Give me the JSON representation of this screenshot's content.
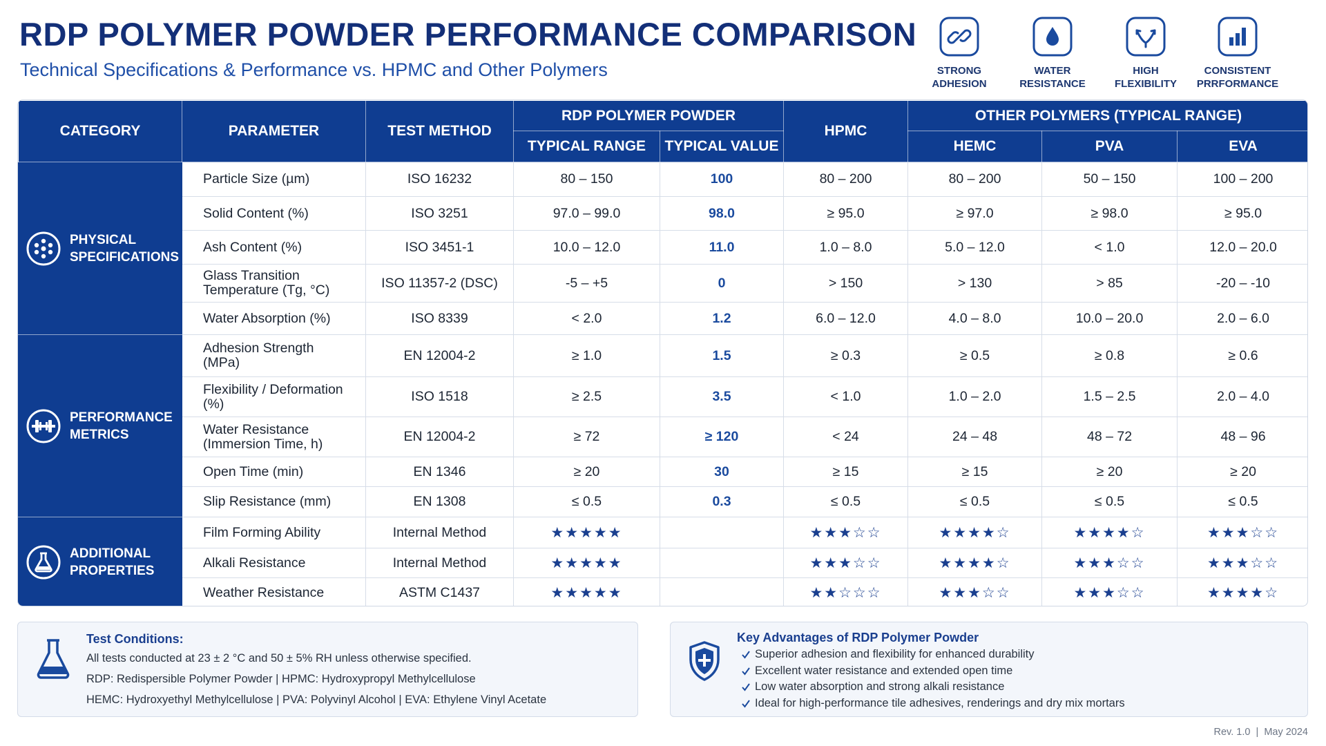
{
  "header": {
    "title": "RDP POLYMER POWDER PERFORMANCE COMPARISON",
    "subtitle": "Technical Specifications & Performance vs. HPMC and Other Polymers"
  },
  "features": [
    {
      "lines": [
        "STRONG",
        "ADHESION"
      ]
    },
    {
      "lines": [
        "WATER",
        "RESISTANCE"
      ]
    },
    {
      "lines": [
        "HIGH",
        "FLEXIBILITY"
      ]
    },
    {
      "lines": [
        "CONSISTENT",
        "PRRFORMANCE"
      ]
    }
  ],
  "table": {
    "headers": {
      "category": "CATEGORY",
      "parameter": "PARAMETER",
      "test_method": "TEST METHOD",
      "rdp": "RDP POLYMER POWDER",
      "typical_range": "TYPICAL RANGE",
      "typical_value": "TYPICAL VALUE",
      "hpmc": "HPMC",
      "other": "OTHER POLYMERS (TYPICAL RANGE)",
      "hemc": "HEMC",
      "pva": "PVA",
      "eva": "EVA"
    },
    "groups": [
      {
        "label": "PHYSICAL SPECIFICATIONS",
        "rows": [
          {
            "parameter": "Particle Size (µm)",
            "test_method": "ISO 16232",
            "typical_range": "80 – 150",
            "typical_value": "100",
            "hpmc": "80 – 200",
            "hemc": "80 – 200",
            "pva": "50 – 150",
            "eva": "100 – 200"
          },
          {
            "parameter": "Solid Content (%)",
            "test_method": "ISO 3251",
            "typical_range": "97.0 – 99.0",
            "typical_value": "98.0",
            "hpmc": "≥ 95.0",
            "hemc": "≥ 97.0",
            "pva": "≥ 98.0",
            "eva": "≥ 95.0"
          },
          {
            "parameter": "Ash Content (%)",
            "test_method": "ISO 3451-1",
            "typical_range": "10.0 – 12.0",
            "typical_value": "11.0",
            "hpmc": "1.0 – 8.0",
            "hemc": "5.0 – 12.0",
            "pva": "< 1.0",
            "eva": "12.0 – 20.0"
          },
          {
            "parameter": "Glass Transition Temperature (Tg, °C)",
            "test_method": "ISO 11357-2 (DSC)",
            "typical_range": "-5 – +5",
            "typical_value": "0",
            "hpmc": "> 150",
            "hemc": "> 130",
            "pva": "> 85",
            "eva": "-20 – -10"
          },
          {
            "parameter": "Water Absorption (%)",
            "test_method": "ISO 8339",
            "typical_range": "< 2.0",
            "typical_value": "1.2",
            "hpmc": "6.0 – 12.0",
            "hemc": "4.0 – 8.0",
            "pva": "10.0 – 20.0",
            "eva": "2.0 – 6.0"
          }
        ]
      },
      {
        "label": "PERFORMANCE METRICS",
        "rows": [
          {
            "parameter": "Adhesion Strength (MPa)",
            "test_method": "EN 12004-2",
            "typical_range": "≥ 1.0",
            "typical_value": "1.5",
            "hpmc": "≥ 0.3",
            "hemc": "≥ 0.5",
            "pva": "≥ 0.8",
            "eva": "≥ 0.6"
          },
          {
            "parameter": "Flexibility / Deformation (%)",
            "test_method": "ISO 1518",
            "typical_range": "≥ 2.5",
            "typical_value": "3.5",
            "hpmc": "< 1.0",
            "hemc": "1.0 – 2.0",
            "pva": "1.5 – 2.5",
            "eva": "2.0 – 4.0"
          },
          {
            "parameter": "Water Resistance (Immersion Time, h)",
            "test_method": "EN 12004-2",
            "typical_range": "≥ 72",
            "typical_value": "≥ 120",
            "hpmc": "< 24",
            "hemc": "24 – 48",
            "pva": "48 – 72",
            "eva": "48 – 96"
          },
          {
            "parameter": "Open Time (min)",
            "test_method": "EN 1346",
            "typical_range": "≥ 20",
            "typical_value": "30",
            "hpmc": "≥ 15",
            "hemc": "≥ 15",
            "pva": "≥ 20",
            "eva": "≥ 20"
          },
          {
            "parameter": "Slip Resistance (mm)",
            "test_method": "EN 1308",
            "typical_range": "≤ 0.5",
            "typical_value": "0.3",
            "hpmc": "≤ 0.5",
            "hemc": "≤ 0.5",
            "pva": "≤ 0.5",
            "eva": "≤ 0.5"
          }
        ]
      },
      {
        "label": "ADDITIONAL PROPERTIES",
        "rows": [
          {
            "parameter": "Film Forming Ability",
            "test_method": "Internal Method",
            "typical_range": "★★★★★",
            "hpmc": "★★★☆☆",
            "hemc": "★★★★☆",
            "pva": "★★★★☆",
            "eva": "★★★☆☆"
          },
          {
            "parameter": "Alkali Resistance",
            "test_method": "Internal Method",
            "typical_range": "★★★★★",
            "hpmc": "★★★☆☆",
            "hemc": "★★★★☆",
            "pva": "★★★☆☆",
            "eva": "★★★☆☆"
          },
          {
            "parameter": "Weather Resistance",
            "test_method": "ASTM C1437",
            "typical_range": "★★★★★",
            "hpmc": "★★☆☆☆",
            "hemc": "★★★☆☆",
            "pva": "★★★☆☆",
            "eva": "★★★★☆"
          }
        ]
      }
    ]
  },
  "test_conditions": {
    "title": "Test Conditions:",
    "lines": [
      "All tests conducted at 23 ± 2 °C and 50 ± 5% RH unless otherwise specified.",
      "RDP: Redispersible Polymer Powder  |  HPMC: Hydroxypropyl Methylcellulose",
      "HEMC: Hydroxyethyl Methylcellulose  |  PVA: Polyvinyl Alcohol  |  EVA: Ethylene Vinyl Acetate"
    ]
  },
  "advantages": {
    "title": "Key Advantages of RDP Polymer Powder",
    "items": [
      "Superior adhesion and flexibility for enhanced durability",
      "Excellent water resistance and extended open time",
      "Low water absorption and strong alkali resistance",
      "Ideal for high-performance tile adhesives, renderings and dry mix mortars"
    ]
  },
  "footer": "Rev. 1.0  |  May 2024"
}
